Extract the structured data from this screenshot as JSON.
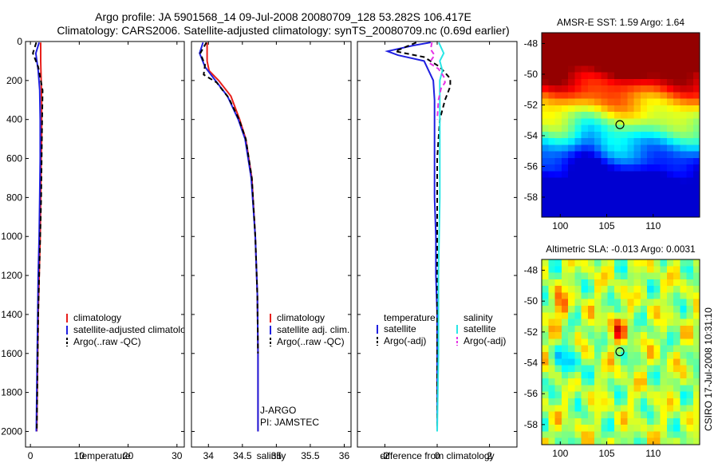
{
  "figure": {
    "title_line1": "Argo profile: JA 5901568_14 09-Jul-2008 20080709_128 53.282S 106.417E",
    "title_line2": "Climatology: CARS2006. Satellite-adjusted climatology: synTS_20080709.nc (0.69d earlier)",
    "side_stamp": "CSIRO 17-Jul-2008 10:31:10"
  },
  "colors": {
    "red": "#e8201c",
    "blue": "#1f1fe0",
    "black": "#000000",
    "cyan": "#29e6e6",
    "magenta": "#e632e6"
  },
  "chart_data": [
    {
      "id": "temperature",
      "type": "line",
      "xlabel": "temperature",
      "xlim": [
        -1,
        31.5
      ],
      "ylim": [
        2080,
        0
      ],
      "xticks": [
        0,
        10,
        20,
        30
      ],
      "xtick_labels": [
        "0",
        "10",
        "20",
        "30"
      ],
      "yticks": [
        0,
        200,
        400,
        600,
        800,
        1000,
        1200,
        1400,
        1600,
        1800,
        2000
      ],
      "ytick_labels": [
        "0",
        "200",
        "400",
        "600",
        "800",
        "1000",
        "1200",
        "1400",
        "1600",
        "1800",
        "2000"
      ],
      "legend": [
        "climatology",
        "satellite-adjusted climatology",
        "Argo(..raw -QC)"
      ],
      "legend_position": "lower-right",
      "series": [
        {
          "name": "climatology",
          "color": "#e8201c",
          "dash": "",
          "x": [
            2.1,
            2.1,
            2.2,
            2.3,
            2.3,
            2.3,
            2.2,
            2.1,
            2.0,
            1.8,
            1.6,
            1.5,
            1.4,
            1.3
          ],
          "depth": [
            5,
            100,
            200,
            300,
            400,
            500,
            600,
            800,
            1000,
            1200,
            1400,
            1600,
            1800,
            2000
          ]
        },
        {
          "name": "satellite-adjusted climatology",
          "color": "#1f1fe0",
          "dash": "",
          "x": [
            1.8,
            1.1,
            1.6,
            1.9,
            2.0,
            2.0,
            2.0,
            1.9,
            1.8,
            1.6,
            1.5,
            1.4,
            1.3,
            1.2
          ],
          "depth": [
            5,
            60,
            150,
            250,
            400,
            500,
            600,
            800,
            1000,
            1200,
            1400,
            1600,
            1800,
            2000
          ]
        },
        {
          "name": "Argo(..raw -QC)",
          "color": "#000000",
          "dash": "6 4",
          "x": [
            1.2,
            0.5,
            1.6,
            2.5,
            2.4,
            2.3,
            2.2,
            2.0,
            1.8,
            1.6,
            1.5,
            1.4,
            1.3
          ],
          "depth": [
            5,
            60,
            130,
            250,
            400,
            600,
            800,
            1000,
            1200,
            1400,
            1600,
            1800,
            2000
          ]
        }
      ]
    },
    {
      "id": "salinity",
      "type": "line",
      "xlabel": "salinity",
      "xlim": [
        33.75,
        36.1
      ],
      "ylim": [
        2080,
        0
      ],
      "xticks": [
        34,
        34.5,
        35,
        35.5,
        36
      ],
      "xtick_labels": [
        "34",
        "34.5",
        "35",
        "35.5",
        "36"
      ],
      "legend": [
        "climatology",
        "satellite adj. clim.",
        "Argo(..raw -QC)"
      ],
      "legend_position": "lower-right",
      "annotations": [
        "J-ARGO",
        "PI: JAMSTEC"
      ],
      "series": [
        {
          "name": "climatology",
          "color": "#e8201c",
          "dash": "",
          "x": [
            33.98,
            33.98,
            34.01,
            34.15,
            34.33,
            34.46,
            34.55,
            34.64,
            34.69,
            34.72,
            34.73,
            34.73,
            34.73
          ],
          "depth": [
            5,
            100,
            150,
            200,
            280,
            400,
            500,
            700,
            1000,
            1300,
            1600,
            1800,
            2000
          ]
        },
        {
          "name": "satellite adj. clim.",
          "color": "#1f1fe0",
          "dash": "",
          "x": [
            33.92,
            33.87,
            33.95,
            34.08,
            34.28,
            34.44,
            34.54,
            34.63,
            34.69,
            34.72,
            34.73,
            34.73,
            34.73
          ],
          "depth": [
            5,
            60,
            130,
            190,
            280,
            400,
            500,
            700,
            1000,
            1300,
            1600,
            1800,
            2000
          ]
        },
        {
          "name": "Argo(..raw -QC)",
          "color": "#000000",
          "dash": "6 4",
          "x": [
            33.97,
            33.88,
            33.95,
            33.93,
            34.12,
            34.3,
            34.45,
            34.55,
            34.64,
            34.69,
            34.72,
            34.73
          ],
          "depth": [
            5,
            60,
            120,
            170,
            210,
            290,
            400,
            500,
            700,
            1000,
            1300,
            1600
          ]
        }
      ]
    },
    {
      "id": "difference",
      "type": "line",
      "xlabel": "difference from climatology",
      "xlim": [
        -3.05,
        3.05
      ],
      "ylim": [
        2080,
        0
      ],
      "xticks": [
        -2,
        0,
        2
      ],
      "xtick_labels": [
        "-2",
        "0",
        "2"
      ],
      "legend_left": {
        "header": "temperature",
        "items": [
          "satellite",
          "Argo(-adj)"
        ]
      },
      "legend_right": {
        "header": "salinity",
        "items": [
          "satellite",
          "Argo(-adj)"
        ]
      },
      "series": [
        {
          "name": "temperature satellite",
          "color": "#1f1fe0",
          "dash": "",
          "x": [
            -0.25,
            -0.9,
            -1.9,
            -1.5,
            -0.5,
            -0.15,
            -0.1,
            -0.1,
            -0.1,
            -0.05,
            -0.05,
            0.0,
            0.0,
            0.0,
            0.0
          ],
          "depth": [
            5,
            20,
            50,
            70,
            100,
            200,
            300,
            600,
            800,
            1000,
            1200,
            1400,
            1600,
            1800,
            2000
          ]
        },
        {
          "name": "temperature Argo(-adj)",
          "color": "#000000",
          "dash": "6 4",
          "x": [
            -0.8,
            -1.6,
            -0.5,
            0.1,
            0.5,
            0.5,
            0.3,
            0.1,
            0.0,
            0.0,
            0.0,
            0.0
          ],
          "depth": [
            5,
            50,
            80,
            130,
            190,
            230,
            300,
            400,
            600,
            1000,
            1500,
            2000
          ]
        },
        {
          "name": "salinity satellite",
          "color": "#29e6e6",
          "dash": "",
          "x": [
            0.06,
            0.25,
            0.1,
            0.2,
            0.1,
            0.1,
            0.1,
            0.05,
            0.05,
            0.0
          ],
          "depth": [
            5,
            60,
            100,
            150,
            200,
            400,
            800,
            1200,
            1600,
            2000
          ]
        },
        {
          "name": "salinity Argo(-adj)",
          "color": "#e632e6",
          "dash": "6 4",
          "x": [
            -0.2,
            -0.25,
            -0.1,
            -0.3,
            0.05,
            0.25,
            0.3,
            0.15,
            0.05,
            0.0
          ],
          "depth": [
            5,
            40,
            70,
            110,
            140,
            180,
            210,
            240,
            300,
            400
          ]
        }
      ]
    },
    {
      "id": "sst_map",
      "type": "heatmap",
      "title": "AMSR-E SST: 1.59 Argo: 1.64",
      "xlim": [
        98,
        115
      ],
      "ylim": [
        -59.3,
        -47.3
      ],
      "xticks": [
        100,
        105,
        110
      ],
      "xtick_labels": [
        "100",
        "105",
        "110"
      ],
      "yticks": [
        -48,
        -50,
        -52,
        -54,
        -56,
        -58
      ],
      "ytick_labels": [
        "-48",
        "-50",
        "-52",
        "-54",
        "-56",
        "-58"
      ],
      "marker": [
        106.417,
        -53.282
      ]
    },
    {
      "id": "sla_map",
      "type": "heatmap",
      "title": "Altimetric SLA: -0.013 Argo: 0.0031",
      "xlim": [
        98,
        115
      ],
      "ylim": [
        -59.3,
        -47.3
      ],
      "xticks": [
        100,
        105,
        110
      ],
      "xtick_labels": [
        "100",
        "105",
        "110"
      ],
      "yticks": [
        -48,
        -50,
        -52,
        -54,
        -56,
        -58
      ],
      "ytick_labels": [
        "-48",
        "-50",
        "-52",
        "-54",
        "-56",
        "-58"
      ],
      "marker": [
        106.417,
        -53.282
      ]
    }
  ]
}
